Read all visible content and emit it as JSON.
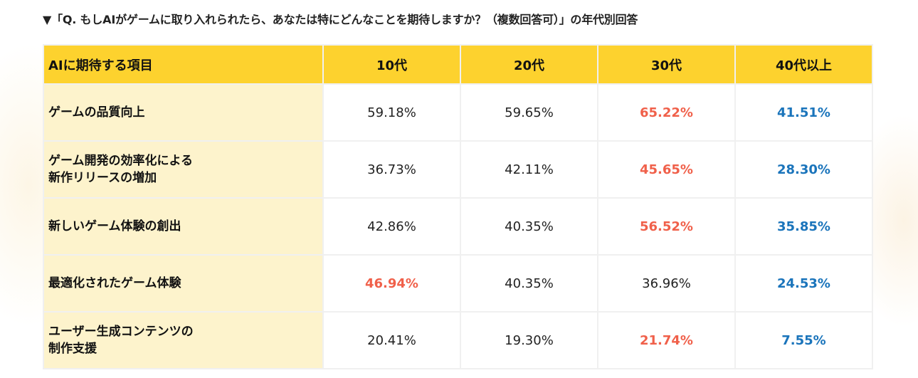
{
  "title": "▼「Q. もしAIがゲームに取り入れられたら、あなたは特にどんなことを期待しますか？（複数回答可）」の年代別回答",
  "table": {
    "headers": [
      "AIに期待する項目",
      "10代",
      "20代",
      "30代",
      "40代以上"
    ],
    "rows": [
      {
        "label": "ゲームの品質向上",
        "cells": [
          {
            "v": "59.18%",
            "s": ""
          },
          {
            "v": "59.65%",
            "s": ""
          },
          {
            "v": "65.22%",
            "s": "high"
          },
          {
            "v": "41.51%",
            "s": "low"
          }
        ]
      },
      {
        "label": "ゲーム開発の効率化による\n新作リリースの増加",
        "cells": [
          {
            "v": "36.73%",
            "s": ""
          },
          {
            "v": "42.11%",
            "s": ""
          },
          {
            "v": "45.65%",
            "s": "high"
          },
          {
            "v": "28.30%",
            "s": "low"
          }
        ]
      },
      {
        "label": "新しいゲーム体験の創出",
        "cells": [
          {
            "v": "42.86%",
            "s": ""
          },
          {
            "v": "40.35%",
            "s": ""
          },
          {
            "v": "56.52%",
            "s": "high"
          },
          {
            "v": "35.85%",
            "s": "low"
          }
        ]
      },
      {
        "label": "最適化されたゲーム体験",
        "cells": [
          {
            "v": "46.94%",
            "s": "high"
          },
          {
            "v": "40.35%",
            "s": ""
          },
          {
            "v": "36.96%",
            "s": ""
          },
          {
            "v": "24.53%",
            "s": "low"
          }
        ]
      },
      {
        "label": "ユーザー生成コンテンツの\n制作支援",
        "cells": [
          {
            "v": "20.41%",
            "s": ""
          },
          {
            "v": "19.30%",
            "s": ""
          },
          {
            "v": "21.74%",
            "s": "high"
          },
          {
            "v": "7.55%",
            "s": "low"
          }
        ]
      }
    ]
  },
  "colors": {
    "header": "#fdd22e",
    "label_bg": "#fdf3cc",
    "high": "#f0604a",
    "low": "#1a74bb"
  }
}
